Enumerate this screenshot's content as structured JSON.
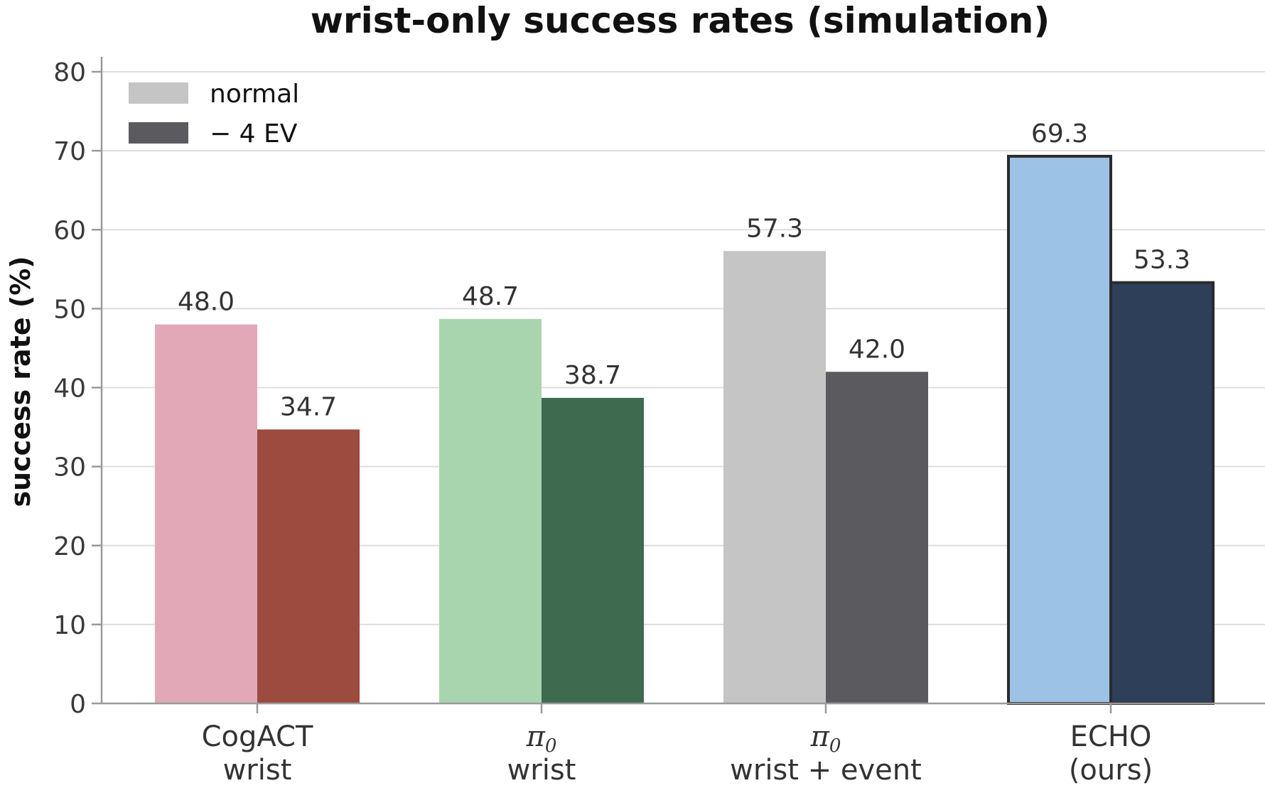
{
  "chart_data": {
    "type": "bar",
    "title": "wrist-only success rates (simulation)",
    "ylabel": "success rate (%)",
    "xlabel": "",
    "ylim": [
      0,
      80
    ],
    "yticks": [
      0,
      10,
      20,
      30,
      40,
      50,
      60,
      70,
      80
    ],
    "grid": "horizontal",
    "legend_position": "top-left",
    "categories": [
      {
        "line1": "CogACT",
        "line1_math": false,
        "line2": "wrist"
      },
      {
        "line1": "π",
        "line1_sub": "0",
        "line1_math": true,
        "line2": "wrist"
      },
      {
        "line1": "π",
        "line1_sub": "0",
        "line1_math": true,
        "line2": "wrist + event"
      },
      {
        "line1": "ECHO",
        "line1_math": false,
        "line2": "(ours)",
        "highlight": true
      }
    ],
    "series": [
      {
        "name": "normal",
        "values": [
          48.0,
          48.7,
          57.3,
          69.3
        ],
        "colors": [
          "#e2a8b8",
          "#a9d5ae",
          "#c5c5c5",
          "#9cc2e6"
        ],
        "legend_color": "#c5c5c5"
      },
      {
        "name": "− 4 EV",
        "values": [
          34.7,
          38.7,
          42.0,
          53.3
        ],
        "colors": [
          "#9c4b3e",
          "#3e6b50",
          "#5a5a5f",
          "#2e3f5a"
        ],
        "legend_color": "#5a5a5f"
      }
    ],
    "value_labels": [
      [
        "48.0",
        "48.7",
        "57.3",
        "69.3"
      ],
      [
        "34.7",
        "38.7",
        "42.0",
        "53.3"
      ]
    ]
  }
}
